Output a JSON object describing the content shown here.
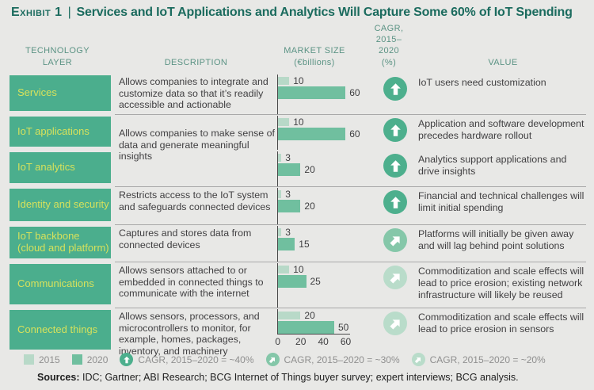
{
  "exhibit": {
    "label": "Exhibit 1",
    "divider": "|",
    "title": "Services and IoT Applications and Analytics Will Capture Some 60% of IoT Spending"
  },
  "columns": [
    "TECHNOLOGY\nLAYER",
    "DESCRIPTION",
    "MARKET SIZE\n(€billions)",
    "CAGR,\n2015–2020\n(%)",
    "VALUE"
  ],
  "rows": [
    {
      "layer": "Services",
      "description": "Allows companies to integrate and customize data so that it’s readily accessible and actionable",
      "divider_above": false,
      "bars": {
        "y2015": 10,
        "y2020": 60
      },
      "cagr_pct": 40,
      "value": "IoT users need customization"
    },
    {
      "layer": "IoT applications",
      "description": "Allows companies to make sense of data and generate meaningful insights",
      "description_spans_next_row": true,
      "divider_above": true,
      "bars": {
        "y2015": 10,
        "y2020": 60
      },
      "cagr_pct": 40,
      "value": "Application and software development precedes hardware rollout"
    },
    {
      "layer": "IoT analytics",
      "description": "",
      "divider_above": false,
      "bars": {
        "y2015": 3,
        "y2020": 20
      },
      "cagr_pct": 40,
      "value": "Analytics support applications and drive insights"
    },
    {
      "layer": "Identity and security",
      "description": "Restricts access to the IoT system and safeguards connected devices",
      "divider_above": true,
      "bars": {
        "y2015": 3,
        "y2020": 20
      },
      "cagr_pct": 40,
      "value": "Financial and technical challenges will limit initial spending"
    },
    {
      "layer": "IoT backbone\n(cloud and platform)",
      "description": "Captures and stores data from connected devices",
      "divider_above": true,
      "bars": {
        "y2015": 3,
        "y2020": 15
      },
      "cagr_pct": 30,
      "value": "Platforms will initially be given away and will lag behind point solutions"
    },
    {
      "layer": "Communications",
      "description": "Allows sensors attached to or embedded in connected things to communicate with the internet",
      "divider_above": true,
      "bars": {
        "y2015": 10,
        "y2020": 25
      },
      "cagr_pct": 20,
      "value": "Commoditization and scale effects will lead to price erosion; existing network infrastructure will likely be reused"
    },
    {
      "layer": "Connected things",
      "description": "Allows sensors, processors, and microcontrollers to monitor, for example, homes, packages, inventory, and machinery",
      "divider_above": true,
      "bars": {
        "y2015": 20,
        "y2020": 50
      },
      "cagr_pct": 20,
      "value": "Commoditization and scale effects will lead to price erosion in sensors"
    }
  ],
  "axis": {
    "ticks": [
      0,
      20,
      40,
      60
    ]
  },
  "legend": {
    "items": [
      {
        "icon": "bar-swatch-2015",
        "label": "2015"
      },
      {
        "icon": "bar-swatch-2020",
        "label": "2020"
      },
      {
        "icon": "cagr-up-arrow",
        "cagr_pct": 40,
        "label": "CAGR, 2015–2020 = ~40%"
      },
      {
        "icon": "cagr-diagonal-arrow",
        "cagr_pct": 30,
        "label": "CAGR, 2015–2020 = ~30%"
      },
      {
        "icon": "cagr-diagonal-arrow",
        "cagr_pct": 20,
        "label": "CAGR, 2015–2020 = ~20%"
      }
    ]
  },
  "sources": {
    "label": "Sources:",
    "text": " IDC; Gartner; ABI Research; BCG Internet of Things buyer survey; expert interviews; BCG analysis."
  },
  "colors": {
    "title_teal": "#1b6b5e",
    "header_teal": "#5b9384",
    "layer_box_green": "#4bae8d",
    "layer_label_yellow_green": "#d6e15c",
    "bar_2015": "#b8d9c8",
    "bar_2020": "#70bf9f",
    "cagr_40_circle": "#4daf8d",
    "cagr_30_circle": "#85c7a9",
    "cagr_20_circle": "#b9dcca",
    "background": "#e8e8e6"
  },
  "chart_data": {
    "type": "bar",
    "orientation": "horizontal",
    "title": "Services and IoT Applications and Analytics Will Capture Some 60% of IoT Spending",
    "xlabel": "Market size (€billions)",
    "xlim": [
      0,
      60
    ],
    "x_ticks": [
      0,
      20,
      40,
      60
    ],
    "grid": false,
    "legend_position": "bottom",
    "categories": [
      "Services",
      "IoT applications",
      "IoT analytics",
      "Identity and security",
      "IoT backbone (cloud and platform)",
      "Communications",
      "Connected things"
    ],
    "series": [
      {
        "name": "2015",
        "values": [
          10,
          10,
          3,
          3,
          3,
          10,
          20
        ]
      },
      {
        "name": "2020",
        "values": [
          60,
          60,
          20,
          20,
          15,
          25,
          50
        ]
      }
    ],
    "cagr_2015_2020_pct": [
      "~40",
      "~40",
      "~40",
      "~40",
      "~30",
      "~20",
      "~20"
    ]
  }
}
